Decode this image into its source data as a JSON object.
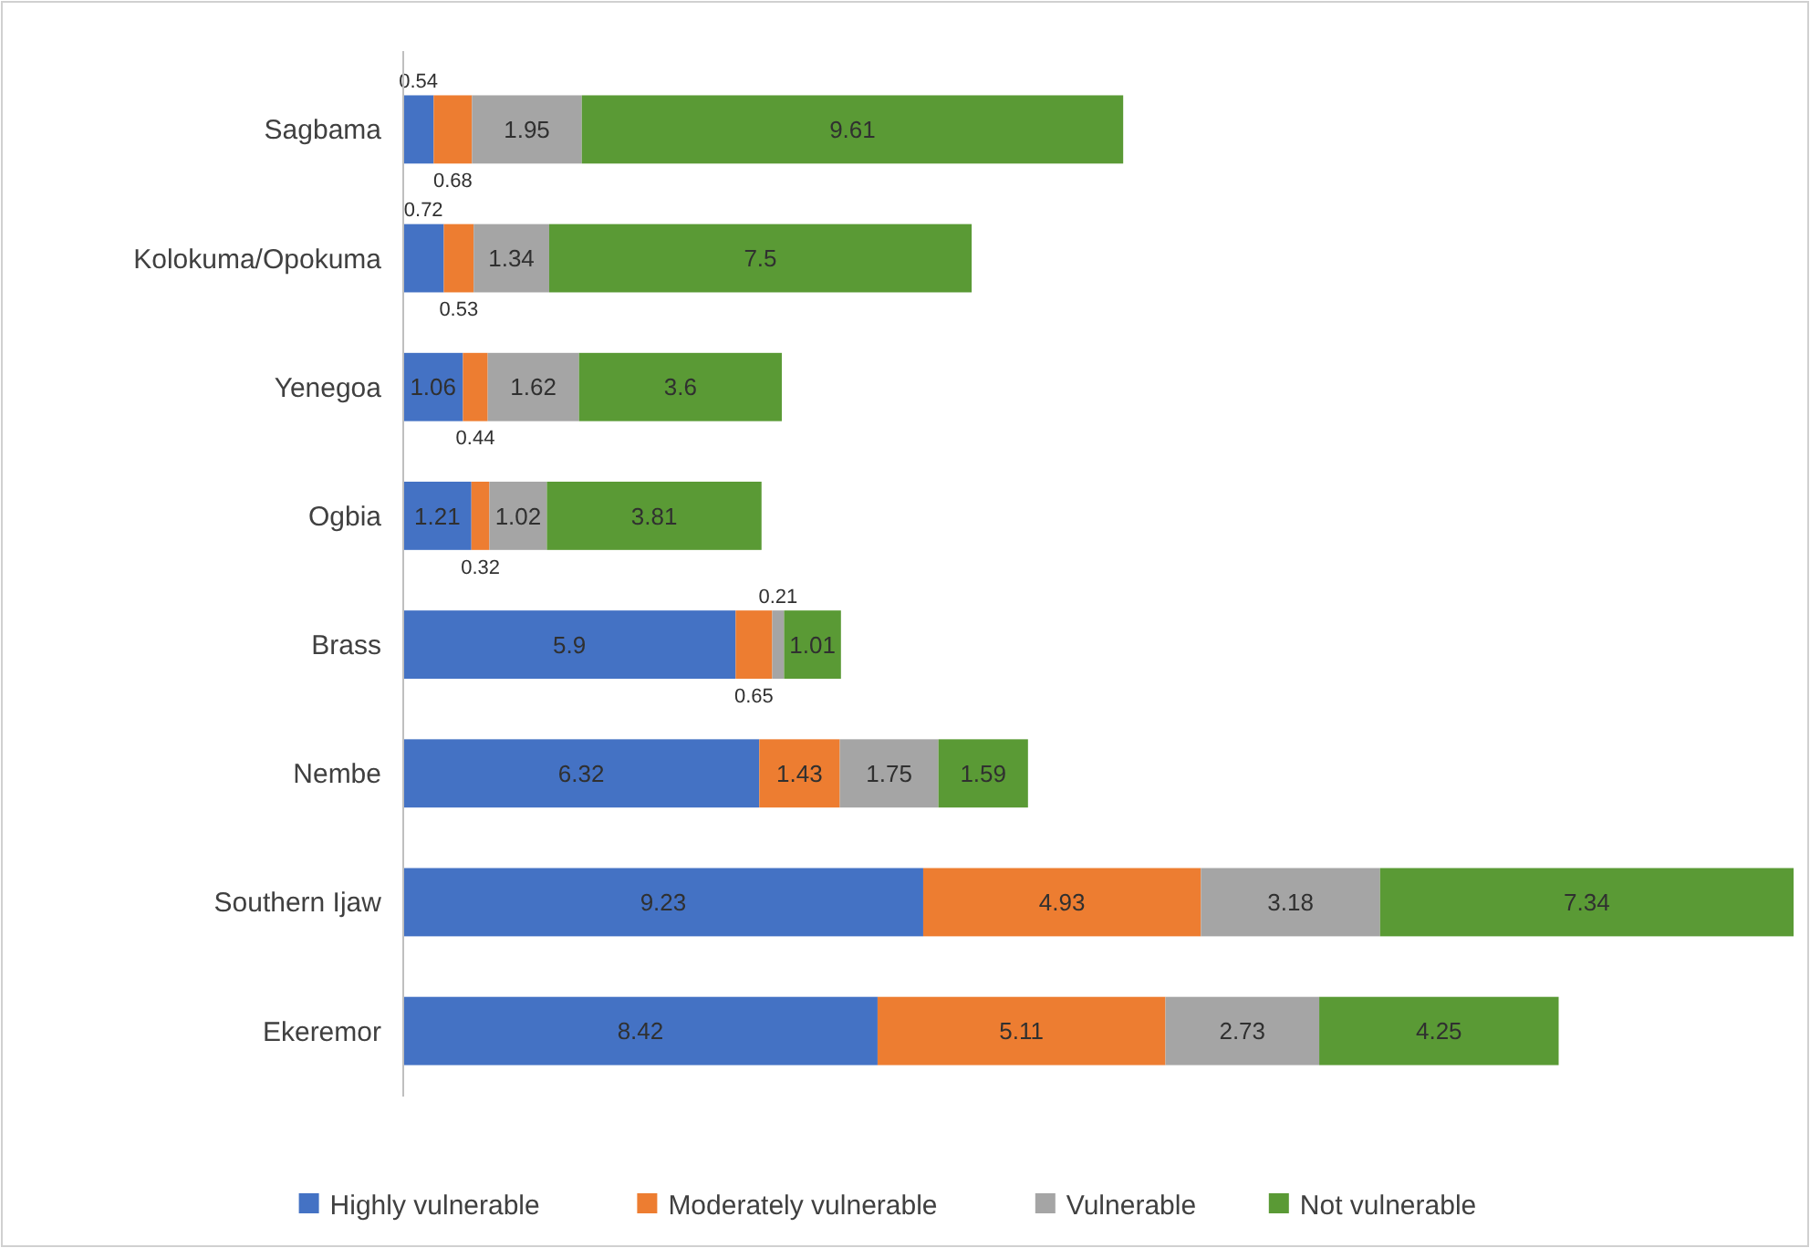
{
  "chart_data": {
    "type": "bar",
    "orientation": "horizontal",
    "stacked": true,
    "data_labels": true,
    "legend": "bottom",
    "categories": [
      "Sagbama",
      "Kolokuma/Opokuma",
      "Yenegoa",
      "Ogbia",
      "Brass",
      "Nembe",
      "Southern Ijaw",
      "Ekeremor"
    ],
    "series": [
      {
        "name": "Highly vulnerable",
        "color": "#4472c4",
        "values": [
          0.54,
          0.72,
          1.06,
          1.21,
          5.9,
          6.32,
          9.23,
          8.42
        ]
      },
      {
        "name": "Moderately vulnerable",
        "color": "#ed7d31",
        "values": [
          0.68,
          0.53,
          0.44,
          0.32,
          0.65,
          1.43,
          4.93,
          5.11
        ]
      },
      {
        "name": "Vulnerable",
        "color": "#a5a5a5",
        "values": [
          1.95,
          1.34,
          1.62,
          1.02,
          0.21,
          1.75,
          3.18,
          2.73
        ]
      },
      {
        "name": "Not vulnerable",
        "color": "#5a9a35",
        "values": [
          9.61,
          7.5,
          3.6,
          3.81,
          1.01,
          1.59,
          7.34,
          4.25
        ]
      }
    ]
  }
}
